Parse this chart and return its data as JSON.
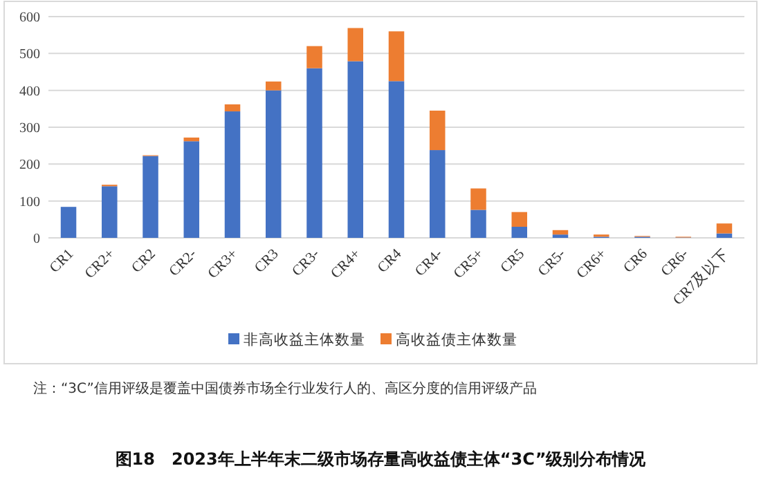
{
  "chart_data": {
    "type": "bar",
    "title": "图18　2023年上半年末二级市场存量高收益债主体“3C”级别分布情况",
    "categories": [
      "CR1",
      "CR2+",
      "CR2",
      "CR2-",
      "CR3+",
      "CR3",
      "CR3-",
      "CR4+",
      "CR4",
      "CR4-",
      "CR5+",
      "CR5",
      "CR5-",
      "CR6+",
      "CR6",
      "CR6-",
      "CR7及以下"
    ],
    "stacked": true,
    "series": [
      {
        "name": "非高收益主体数量",
        "color": "#4472c4",
        "values": [
          84,
          140,
          222,
          262,
          343,
          400,
          460,
          479,
          425,
          238,
          76,
          30,
          9,
          3,
          3,
          1,
          12
        ]
      },
      {
        "name": "高收益债主体数量",
        "color": "#ed7d31",
        "values": [
          0,
          4,
          2,
          10,
          19,
          24,
          60,
          90,
          135,
          107,
          58,
          40,
          12,
          6,
          2,
          2,
          27
        ]
      }
    ],
    "ylim": [
      0,
      600
    ],
    "yticks": [
      0,
      100,
      200,
      300,
      400,
      500,
      600
    ],
    "grid": "y",
    "legend": "bottom",
    "annotations": [
      "注：“3C”信用评级是覆盖中国债券市场全行业发行人的、高区分度的信用评级产品"
    ]
  }
}
